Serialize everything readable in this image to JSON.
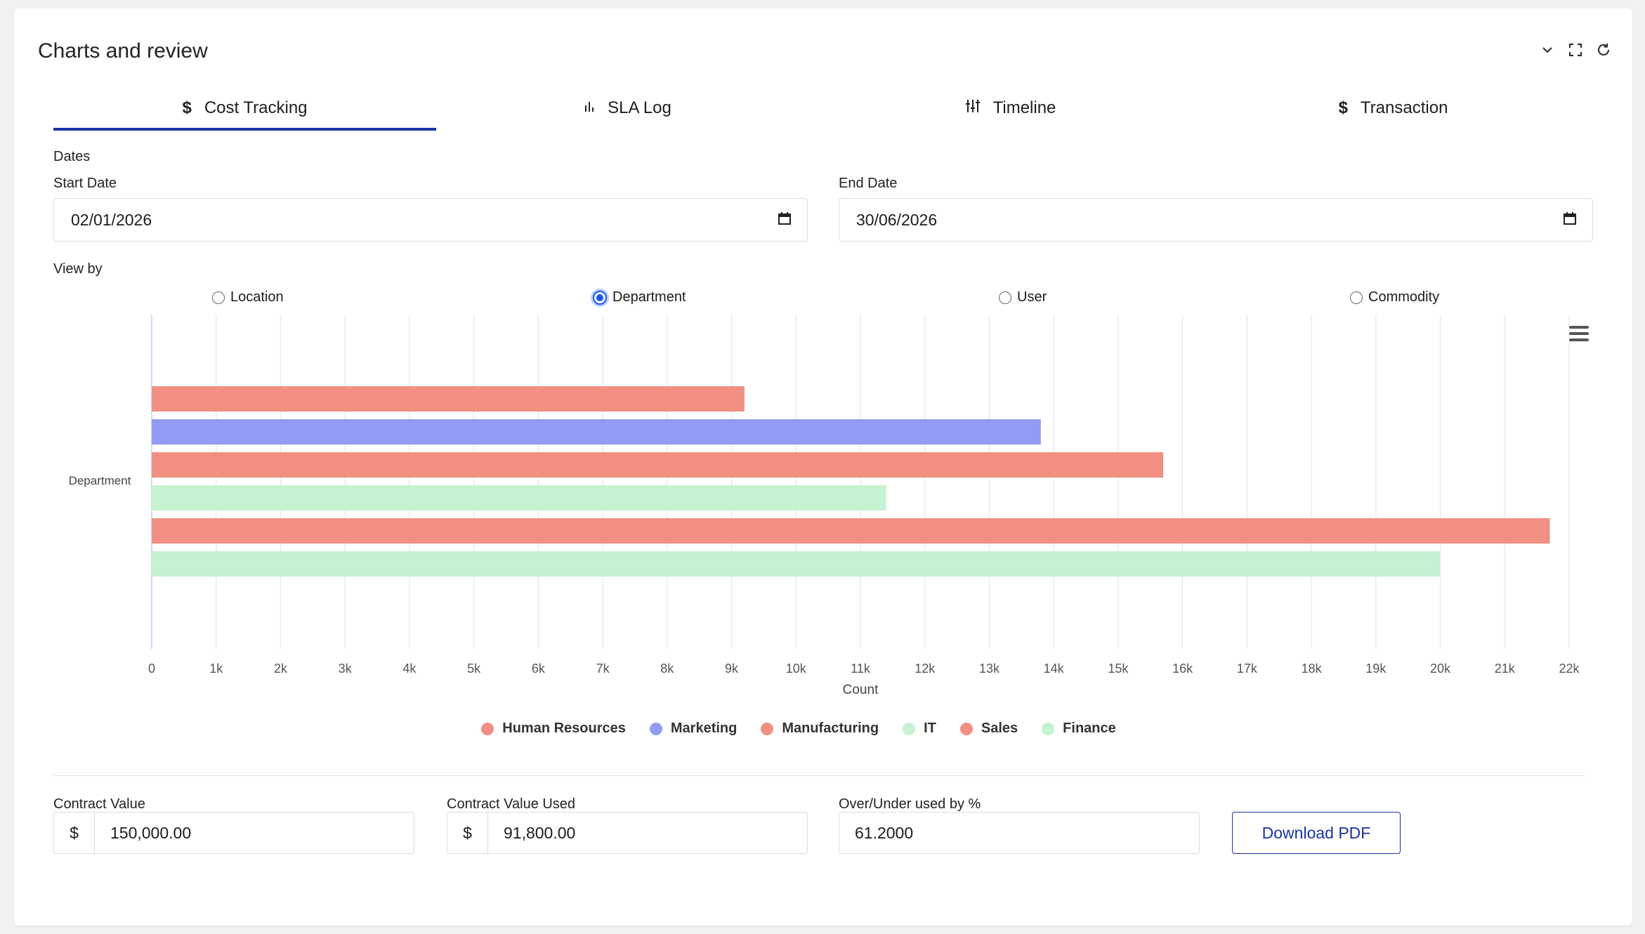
{
  "header": {
    "title": "Charts and review"
  },
  "tabs": [
    {
      "label": "Cost Tracking",
      "icon": "dollar-icon"
    },
    {
      "label": "SLA Log",
      "icon": "bar-chart-icon"
    },
    {
      "label": "Timeline",
      "icon": "sliders-icon"
    },
    {
      "label": "Transaction",
      "icon": "dollar-icon"
    }
  ],
  "dates": {
    "section_label": "Dates",
    "start_label": "Start Date",
    "start_value": "02/01/2026",
    "end_label": "End Date",
    "end_value": "30/06/2026"
  },
  "view_by": {
    "label": "View by",
    "options": [
      "Location",
      "Department",
      "User",
      "Commodity"
    ],
    "selected": "Department"
  },
  "chart_data": {
    "type": "bar",
    "orientation": "horizontal",
    "category_label": "Department",
    "xlabel": "Count",
    "xlim": [
      0,
      22000
    ],
    "x_ticks": [
      "0",
      "1k",
      "2k",
      "3k",
      "4k",
      "5k",
      "6k",
      "7k",
      "8k",
      "9k",
      "10k",
      "11k",
      "12k",
      "13k",
      "14k",
      "15k",
      "16k",
      "17k",
      "18k",
      "19k",
      "20k",
      "21k",
      "22k"
    ],
    "grid": true,
    "legend_position": "bottom",
    "series": [
      {
        "name": "Human Resources",
        "value": 9200,
        "color": "#f08f82"
      },
      {
        "name": "Marketing",
        "value": 13800,
        "color": "#929cf5"
      },
      {
        "name": "Manufacturing",
        "value": 15700,
        "color": "#f08f82"
      },
      {
        "name": "IT",
        "value": 11400,
        "color": "#c5f2d0"
      },
      {
        "name": "Sales",
        "value": 21700,
        "color": "#f08f82"
      },
      {
        "name": "Finance",
        "value": 20000,
        "color": "#c5f2d0"
      }
    ]
  },
  "summary": {
    "contract_value_label": "Contract Value",
    "contract_value_currency": "$",
    "contract_value": "150,000.00",
    "contract_used_label": "Contract Value Used",
    "contract_used_currency": "$",
    "contract_used": "91,800.00",
    "over_under_label": "Over/Under used by %",
    "over_under": "61.2000",
    "download_label": "Download PDF"
  }
}
